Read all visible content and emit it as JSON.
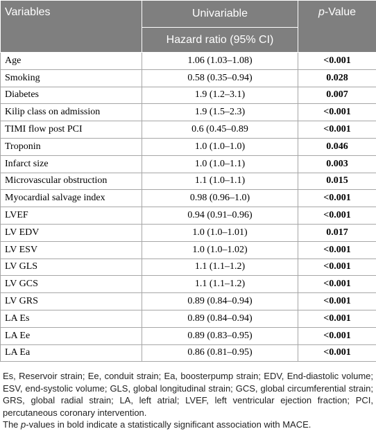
{
  "header": {
    "col1": "Variables",
    "col2": "Univariable",
    "col2_sub": "Hazard ratio (95% CI)",
    "col3_italic": "p",
    "col3_rest": "-Value"
  },
  "rows": [
    {
      "variable": "Age",
      "hr": "1.06 (1.03–1.08)",
      "p": "<0.001"
    },
    {
      "variable": "Smoking",
      "hr": "0.58 (0.35–0.94)",
      "p": "0.028"
    },
    {
      "variable": "Diabetes",
      "hr": "1.9 (1.2–3.1)",
      "p": "0.007"
    },
    {
      "variable": "Kilip class on admission",
      "hr": "1.9 (1.5–2.3)",
      "p": "<0.001"
    },
    {
      "variable": "TIMI flow post PCI",
      "hr": "0.6 (0.45–0.89",
      "p": "<0.001"
    },
    {
      "variable": "Troponin",
      "hr": "1.0 (1.0–1.0)",
      "p": "0.046"
    },
    {
      "variable": "Infarct size",
      "hr": "1.0 (1.0–1.1)",
      "p": "0.003"
    },
    {
      "variable": "Microvascular obstruction",
      "hr": "1.1 (1.0–1.1)",
      "p": "0.015"
    },
    {
      "variable": "Myocardial salvage index",
      "hr": "0.98 (0.96–1.0)",
      "p": "<0.001"
    },
    {
      "variable": "LVEF",
      "hr": "0.94 (0.91–0.96)",
      "p": "<0.001"
    },
    {
      "variable": "LV EDV",
      "hr": "1.0 (1.0–1.01)",
      "p": "0.017"
    },
    {
      "variable": "LV ESV",
      "hr": "1.0 (1.0–1.02)",
      "p": "<0.001"
    },
    {
      "variable": "LV GLS",
      "hr": "1.1 (1.1–1.2)",
      "p": "<0.001"
    },
    {
      "variable": "LV GCS",
      "hr": "1.1 (1.1–1.2)",
      "p": "<0.001"
    },
    {
      "variable": "LV GRS",
      "hr": "0.89 (0.84–0.94)",
      "p": "<0.001"
    },
    {
      "variable": "LA Es",
      "hr": "0.89 (0.84–0.94)",
      "p": "<0.001"
    },
    {
      "variable": "LA Ee",
      "hr": "0.89 (0.83–0.95)",
      "p": "<0.001"
    },
    {
      "variable": "LA Ea",
      "hr": "0.86 (0.81–0.95)",
      "p": "<0.001"
    }
  ],
  "notes": {
    "abbreviations": "Es, Reservoir strain; Ee, conduit strain; Ea, boosterpump strain; EDV, End-diastolic volume; ESV, end-systolic volume; GLS, global longitudinal strain; GCS, global circumferential strain; GRS, global radial strain; LA, left atrial; LVEF, left ventricular ejection fraction; PCI, percutaneous coronary intervention.",
    "bold_prefix": "The ",
    "bold_italic": "p",
    "bold_rest": "-values in bold indicate a statistically significant association with MACE."
  }
}
